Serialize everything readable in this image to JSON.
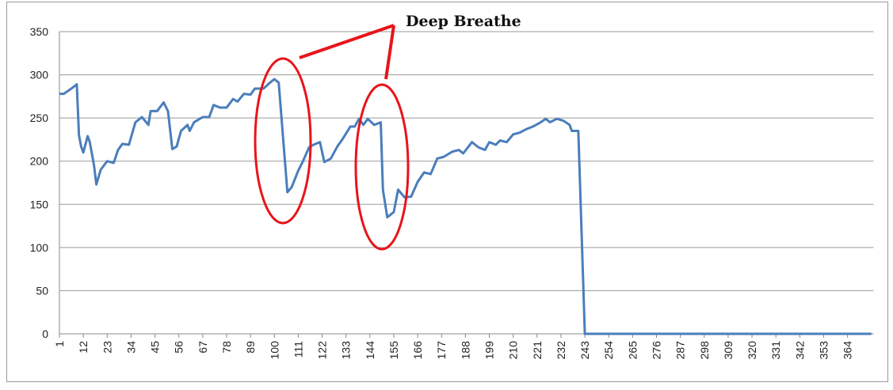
{
  "chart_data": {
    "type": "line",
    "annotation": "Deep Breathe",
    "xlim": [
      1,
      376
    ],
    "xticks": [
      1,
      12,
      23,
      34,
      45,
      56,
      67,
      78,
      89,
      100,
      111,
      122,
      133,
      144,
      155,
      166,
      177,
      188,
      199,
      210,
      221,
      232,
      243,
      254,
      265,
      276,
      287,
      298,
      309,
      320,
      331,
      342,
      353,
      364
    ],
    "ylim": [
      0,
      350
    ],
    "yticks": [
      0,
      50,
      100,
      150,
      200,
      250,
      300,
      350
    ],
    "grid": true,
    "series": [
      {
        "color": "#4a7ebb",
        "x": [
          1,
          3,
          7,
          9,
          10,
          11,
          12,
          14,
          15,
          17,
          18,
          20,
          23,
          26,
          28,
          30,
          33,
          36,
          39,
          42,
          43,
          46,
          49,
          51,
          53,
          55,
          57,
          60,
          61,
          63,
          67,
          70,
          72,
          75,
          78,
          81,
          83,
          86,
          89,
          91,
          95,
          98,
          100,
          102,
          106,
          108,
          111,
          113,
          116,
          118,
          121,
          123,
          126,
          129,
          131,
          135,
          137,
          139,
          141,
          143,
          146,
          149,
          150,
          152,
          155,
          157,
          160,
          163,
          166,
          169,
          172,
          175,
          178,
          182,
          185,
          187,
          191,
          194,
          197,
          199,
          202,
          204,
          207,
          210,
          213,
          216,
          219,
          222,
          225,
          227,
          230,
          233,
          236,
          237,
          240,
          243,
          375
        ],
        "values": [
          278,
          278,
          285,
          289,
          230,
          217,
          210,
          229,
          222,
          194,
          173,
          190,
          200,
          198,
          213,
          220,
          219,
          245,
          251,
          242,
          258,
          258,
          268,
          258,
          214,
          217,
          235,
          242,
          235,
          245,
          251,
          251,
          265,
          262,
          262,
          272,
          269,
          278,
          277,
          284,
          284,
          291,
          295,
          291,
          164,
          170,
          189,
          199,
          216,
          219,
          222,
          199,
          203,
          217,
          224,
          240,
          240,
          249,
          242,
          249,
          242,
          245,
          167,
          135,
          141,
          167,
          158,
          159,
          176,
          187,
          185,
          203,
          205,
          211,
          213,
          209,
          222,
          216,
          213,
          222,
          219,
          224,
          222,
          231,
          233,
          237,
          240,
          244,
          249,
          245,
          249,
          247,
          242,
          235,
          235,
          0,
          0
        ]
      }
    ]
  }
}
